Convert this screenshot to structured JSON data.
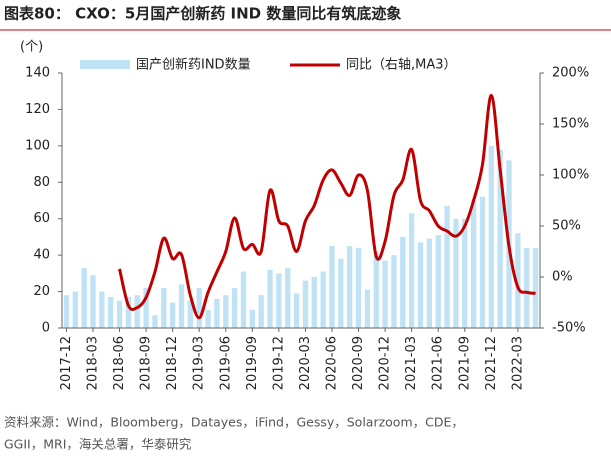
{
  "chart_data": {
    "type": "bar_line",
    "title": "图表80： CXO：5月国产创新药 IND 数量同比有筑底迹象",
    "y_label": "(个)",
    "source": "资料来源：Wind，Bloomberg，Datayes，iFind，Gessy，Solarzoom，CDE，GGII，MRI，海关总署，华泰研究",
    "categories": [
      "2017-12",
      null,
      null,
      "2018-03",
      null,
      null,
      "2018-06",
      null,
      null,
      "2018-09",
      null,
      null,
      "2018-12",
      null,
      null,
      "2019-03",
      null,
      null,
      "2019-06",
      null,
      null,
      "2019-09",
      null,
      null,
      "2019-12",
      null,
      null,
      "2020-03",
      null,
      null,
      "2020-06",
      null,
      null,
      "2020-09",
      null,
      null,
      "2020-12",
      null,
      null,
      "2021-03",
      null,
      null,
      "2021-06",
      null,
      null,
      "2021-09",
      null,
      null,
      "2021-12",
      null,
      null,
      "2022-03",
      null,
      null
    ],
    "series": [
      {
        "name": "国产创新药IND数量",
        "color": "#bfe3f5",
        "axis": "y",
        "values": [
          18,
          20,
          33,
          29,
          20,
          17,
          15,
          17,
          18,
          22,
          7,
          22,
          14,
          24,
          15,
          22,
          10,
          16,
          18,
          22,
          31,
          10,
          18,
          32,
          30,
          33,
          19,
          26,
          28,
          31,
          45,
          38,
          45,
          44,
          21,
          42,
          37,
          40,
          50,
          63,
          47,
          49,
          51,
          67,
          60,
          60,
          70,
          72,
          100,
          98,
          92,
          52,
          44,
          44
        ]
      },
      {
        "name": "同比（右轴,MA3）",
        "color": "#c00000",
        "axis": "y2",
        "values": [
          null,
          null,
          null,
          null,
          null,
          null,
          8,
          -28,
          -30,
          -20,
          5,
          38,
          18,
          22,
          -18,
          -40,
          -15,
          5,
          25,
          58,
          28,
          32,
          25,
          85,
          55,
          50,
          25,
          55,
          70,
          95,
          105,
          92,
          80,
          100,
          85,
          20,
          35,
          80,
          95,
          125,
          75,
          65,
          50,
          45,
          40,
          50,
          75,
          110,
          178,
          105,
          30,
          -10,
          -15,
          -16
        ]
      }
    ],
    "ylim": [
      0,
      140
    ],
    "yticks": [
      0,
      20,
      40,
      60,
      80,
      100,
      120,
      140
    ],
    "y2lim": [
      -50,
      200
    ],
    "y2ticks": [
      {
        "value": -50,
        "label": "-50%"
      },
      {
        "value": 0,
        "label": "0%"
      },
      {
        "value": 50,
        "label": "50%"
      },
      {
        "value": 100,
        "label": "100%"
      },
      {
        "value": 150,
        "label": "150%"
      },
      {
        "value": 200,
        "label": "200%"
      }
    ]
  }
}
